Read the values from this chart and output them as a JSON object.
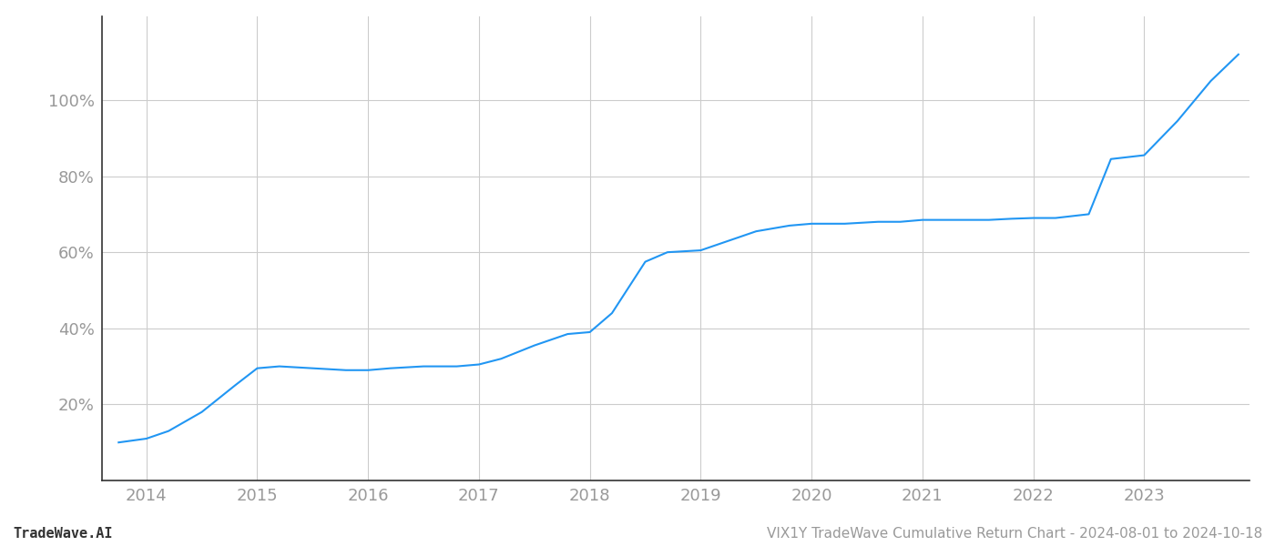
{
  "x_values": [
    2013.75,
    2014.0,
    2014.2,
    2014.5,
    2014.8,
    2015.0,
    2015.2,
    2015.5,
    2015.8,
    2016.0,
    2016.2,
    2016.5,
    2016.8,
    2017.0,
    2017.2,
    2017.5,
    2017.8,
    2018.0,
    2018.2,
    2018.5,
    2018.7,
    2019.0,
    2019.2,
    2019.5,
    2019.8,
    2020.0,
    2020.3,
    2020.6,
    2020.8,
    2021.0,
    2021.3,
    2021.6,
    2021.8,
    2022.0,
    2022.2,
    2022.5,
    2022.7,
    2023.0,
    2023.3,
    2023.6,
    2023.85
  ],
  "y_values": [
    0.1,
    0.11,
    0.13,
    0.18,
    0.25,
    0.295,
    0.3,
    0.295,
    0.29,
    0.29,
    0.295,
    0.3,
    0.3,
    0.305,
    0.32,
    0.355,
    0.385,
    0.39,
    0.44,
    0.575,
    0.6,
    0.605,
    0.625,
    0.655,
    0.67,
    0.675,
    0.675,
    0.68,
    0.68,
    0.685,
    0.685,
    0.685,
    0.688,
    0.69,
    0.69,
    0.7,
    0.845,
    0.855,
    0.945,
    1.05,
    1.12
  ],
  "line_color": "#2196F3",
  "line_width": 1.5,
  "bg_color": "#ffffff",
  "grid_color": "#cccccc",
  "grid_linewidth": 0.8,
  "spine_color": "#333333",
  "tick_color": "#999999",
  "x_min": 2013.6,
  "x_max": 2023.95,
  "y_min": 0.0,
  "y_max": 1.22,
  "x_ticks": [
    2014,
    2015,
    2016,
    2017,
    2018,
    2019,
    2020,
    2021,
    2022,
    2023
  ],
  "y_ticks": [
    0.2,
    0.4,
    0.6,
    0.8,
    1.0
  ],
  "y_tick_labels": [
    "20%",
    "40%",
    "60%",
    "80%",
    "100%"
  ],
  "footer_left": "TradeWave.AI",
  "footer_right": "VIX1Y TradeWave Cumulative Return Chart - 2024-08-01 to 2024-10-18",
  "font_size_ticks": 13,
  "font_size_footer": 11
}
